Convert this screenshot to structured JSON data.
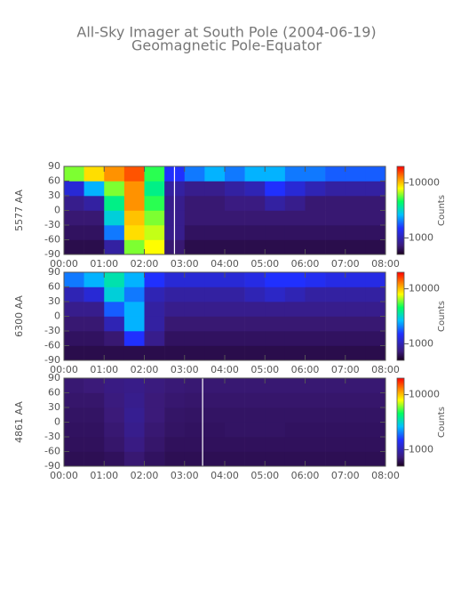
{
  "title": "All-Sky Imager at South Pole (2004-06-19)",
  "subtitle": "Geomagnetic Pole-Equator",
  "chart_data": [
    {
      "type": "heatmap",
      "ylabel": "5577 AA",
      "xlim": [
        0,
        8
      ],
      "ylim": [
        -90,
        90
      ],
      "xbins": [
        0,
        0.5,
        1,
        1.5,
        2,
        2.5,
        3,
        3.5,
        4,
        4.5,
        5,
        5.5,
        6,
        6.5,
        7,
        7.5,
        8
      ],
      "ybins": [
        -90,
        -60,
        -30,
        0,
        30,
        60,
        90
      ],
      "xticks": [
        {
          "value": 0,
          "label": "00:00"
        },
        {
          "value": 1,
          "label": "01:00"
        },
        {
          "value": 2,
          "label": "02:00"
        },
        {
          "value": 3,
          "label": "03:00"
        },
        {
          "value": 4,
          "label": "04:00"
        },
        {
          "value": 5,
          "label": "05:00"
        },
        {
          "value": 6,
          "label": "06:00"
        },
        {
          "value": 7,
          "label": "07:00"
        },
        {
          "value": 8,
          "label": "08:00"
        }
      ],
      "yticks": [
        -90,
        -60,
        -30,
        0,
        30,
        60,
        90
      ],
      "gap_x": [
        2.75
      ],
      "values": [
        [
          600,
          600,
          900,
          6000,
          8000,
          700,
          600,
          600,
          600,
          600,
          600,
          600,
          600,
          600,
          600,
          600
        ],
        [
          650,
          650,
          2000,
          9000,
          7000,
          800,
          650,
          650,
          650,
          650,
          650,
          650,
          650,
          650,
          650,
          650
        ],
        [
          700,
          700,
          3000,
          10000,
          6000,
          800,
          700,
          700,
          700,
          700,
          700,
          700,
          700,
          700,
          700,
          700
        ],
        [
          800,
          900,
          4000,
          12000,
          5000,
          800,
          700,
          700,
          750,
          750,
          900,
          800,
          700,
          700,
          700,
          700
        ],
        [
          1200,
          2500,
          6000,
          12000,
          4000,
          900,
          800,
          800,
          900,
          1000,
          1500,
          1200,
          1000,
          900,
          900,
          900
        ],
        [
          6000,
          9000,
          12000,
          15000,
          5000,
          1500,
          2000,
          2500,
          2000,
          2500,
          2500,
          2000,
          2000,
          1800,
          1800,
          1800
        ]
      ],
      "colorbar": {
        "label": "Counts",
        "lim": [
          500,
          20000
        ],
        "log": true,
        "ticks": [
          1000,
          10000
        ]
      }
    },
    {
      "type": "heatmap",
      "ylabel": "6300 AA",
      "xlim": [
        0,
        8
      ],
      "ylim": [
        -90,
        90
      ],
      "xbins": [
        0,
        0.5,
        1,
        1.5,
        2,
        2.5,
        3,
        3.5,
        4,
        4.5,
        5,
        5.5,
        6,
        6.5,
        7,
        7.5,
        8
      ],
      "ybins": [
        -90,
        -60,
        -30,
        0,
        30,
        60,
        90
      ],
      "xticks": [
        {
          "value": 0,
          "label": "00:00"
        },
        {
          "value": 1,
          "label": "01:00"
        },
        {
          "value": 2,
          "label": "02:00"
        },
        {
          "value": 3,
          "label": "03:00"
        },
        {
          "value": 4,
          "label": "04:00"
        },
        {
          "value": 5,
          "label": "05:00"
        },
        {
          "value": 6,
          "label": "06:00"
        },
        {
          "value": 7,
          "label": "07:00"
        },
        {
          "value": 8,
          "label": "08:00"
        }
      ],
      "yticks": [
        -90,
        -60,
        -30,
        0,
        30,
        60,
        90
      ],
      "values": [
        [
          600,
          600,
          600,
          600,
          600,
          600,
          600,
          600,
          600,
          600,
          600,
          600,
          600,
          600,
          600,
          600
        ],
        [
          650,
          650,
          700,
          1500,
          800,
          650,
          650,
          650,
          650,
          650,
          650,
          650,
          650,
          650,
          650,
          650
        ],
        [
          700,
          700,
          1000,
          2500,
          900,
          700,
          700,
          700,
          700,
          700,
          700,
          700,
          700,
          700,
          700,
          700
        ],
        [
          800,
          800,
          1800,
          2500,
          900,
          800,
          800,
          800,
          800,
          800,
          800,
          800,
          800,
          800,
          800,
          800
        ],
        [
          1000,
          1200,
          3000,
          2000,
          1000,
          900,
          900,
          900,
          900,
          1000,
          1100,
          1000,
          900,
          900,
          900,
          900
        ],
        [
          2000,
          2500,
          3500,
          2500,
          1500,
          1200,
          1200,
          1200,
          1200,
          1300,
          1500,
          1500,
          1400,
          1300,
          1300,
          1300
        ]
      ],
      "colorbar": {
        "label": "Counts",
        "lim": [
          500,
          20000
        ],
        "log": true,
        "ticks": [
          1000,
          10000
        ]
      }
    },
    {
      "type": "heatmap",
      "ylabel": "4861 AA",
      "xlim": [
        0,
        8
      ],
      "ylim": [
        -90,
        90
      ],
      "xbins": [
        0,
        0.5,
        1,
        1.5,
        2,
        2.5,
        3,
        3.5,
        4,
        4.5,
        5,
        5.5,
        6,
        6.5,
        7,
        7.5,
        8
      ],
      "ybins": [
        -90,
        -60,
        -30,
        0,
        30,
        60,
        90
      ],
      "xticks": [
        {
          "value": 0,
          "label": "00:00"
        },
        {
          "value": 1,
          "label": "01:00"
        },
        {
          "value": 2,
          "label": "02:00"
        },
        {
          "value": 3,
          "label": "03:00"
        },
        {
          "value": 4,
          "label": "04:00"
        },
        {
          "value": 5,
          "label": "05:00"
        },
        {
          "value": 6,
          "label": "06:00"
        },
        {
          "value": 7,
          "label": "07:00"
        },
        {
          "value": 8,
          "label": "08:00"
        }
      ],
      "yticks": [
        -90,
        -60,
        -30,
        0,
        30,
        60,
        90
      ],
      "gap_x": [
        3.45
      ],
      "values": [
        [
          620,
          620,
          640,
          700,
          650,
          620,
          620,
          620,
          620,
          620,
          620,
          620,
          620,
          620,
          620,
          620
        ],
        [
          640,
          640,
          680,
          760,
          680,
          640,
          640,
          640,
          640,
          640,
          640,
          640,
          640,
          640,
          640,
          640
        ],
        [
          650,
          650,
          700,
          800,
          700,
          660,
          650,
          650,
          660,
          660,
          660,
          650,
          650,
          650,
          650,
          650
        ],
        [
          660,
          660,
          720,
          820,
          720,
          670,
          660,
          660,
          660,
          660,
          660,
          660,
          660,
          660,
          660,
          660
        ],
        [
          680,
          680,
          740,
          800,
          720,
          690,
          680,
          680,
          680,
          680,
          680,
          680,
          680,
          680,
          680,
          680
        ],
        [
          700,
          720,
          760,
          780,
          740,
          710,
          700,
          700,
          700,
          700,
          700,
          700,
          700,
          700,
          700,
          700
        ]
      ],
      "colorbar": {
        "label": "Counts",
        "lim": [
          500,
          20000
        ],
        "log": true,
        "ticks": [
          1000,
          10000
        ]
      }
    }
  ]
}
